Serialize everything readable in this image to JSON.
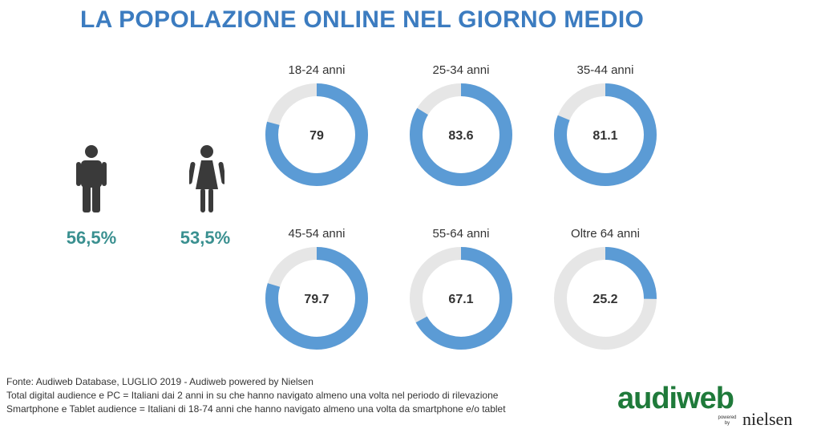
{
  "title": "LA POPOLAZIONE ONLINE NEL GIORNO MEDIO",
  "gender": {
    "male": {
      "icon": "male-person-icon",
      "value": "56,5%"
    },
    "female": {
      "icon": "female-person-icon",
      "value": "53,5%"
    }
  },
  "colors": {
    "title": "#3c7cc0",
    "donut_fill": "#5b9bd5",
    "donut_track": "#e6e6e6",
    "percent_text": "#3a9090",
    "person_icon": "#3a3a3a"
  },
  "chart_data": {
    "type": "donut",
    "max": 100,
    "categories": [
      "18-24 anni",
      "25-34 anni",
      "35-44 anni",
      "45-54 anni",
      "55-64 anni",
      "Oltre 64 anni"
    ],
    "values": [
      79,
      83.6,
      81.1,
      79.7,
      67.1,
      25.2
    ],
    "value_labels": [
      "79",
      "83.6",
      "81.1",
      "79.7",
      "67.1",
      "25.2"
    ]
  },
  "footer": {
    "line1": "Fonte: Audiweb Database, LUGLIO 2019 - Audiweb powered by Nielsen",
    "line2": "Total digital audience e PC = Italiani dai 2 anni in su che hanno navigato almeno una volta nel periodo di rilevazione",
    "line3": "Smartphone e Tablet audience = Italiani di 18-74 anni che hanno navigato almeno una volta da smartphone e/o tablet"
  },
  "logo": {
    "brand": "audiweb",
    "powered": "powered by",
    "partner": "nielsen"
  }
}
